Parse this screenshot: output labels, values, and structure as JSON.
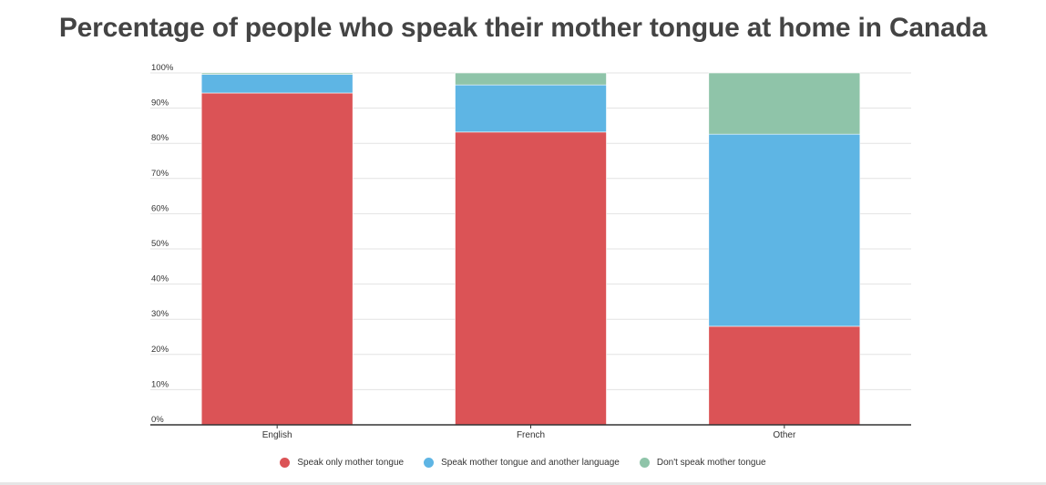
{
  "chart_data": {
    "type": "bar",
    "stacked": true,
    "title": "Percentage of people who speak their mother tongue at home in Canada",
    "xlabel": "",
    "ylabel": "",
    "categories": [
      "English",
      "French",
      "Other"
    ],
    "y_ticks": [
      "0%",
      "10%",
      "20%",
      "30%",
      "40%",
      "50%",
      "60%",
      "70%",
      "80%",
      "90%",
      "100%"
    ],
    "ylim": [
      0,
      100
    ],
    "grid": true,
    "legend_position": "bottom",
    "series": [
      {
        "name": "Speak only mother tongue",
        "color": "#db5356",
        "values": [
          94.3,
          83.2,
          28.0
        ]
      },
      {
        "name": "Speak mother tongue and another language",
        "color": "#5eb5e4",
        "values": [
          5.3,
          13.4,
          54.6
        ]
      },
      {
        "name": "Don't speak mother tongue",
        "color": "#8fc4a9",
        "values": [
          0.4,
          3.4,
          17.4
        ]
      }
    ]
  }
}
